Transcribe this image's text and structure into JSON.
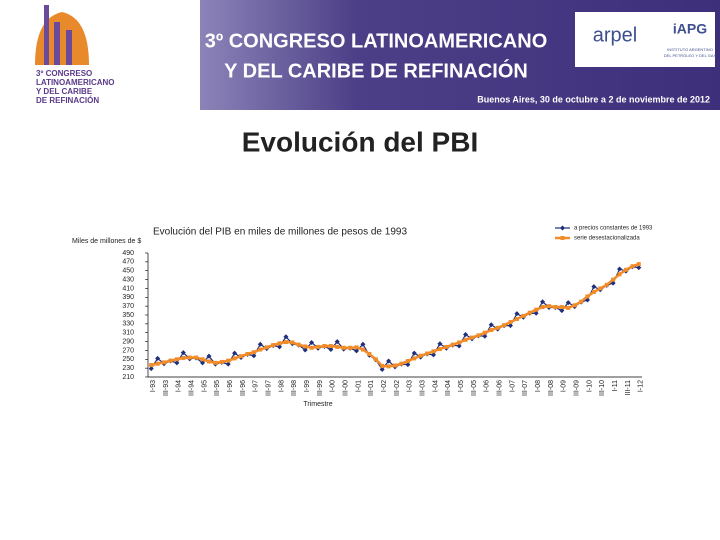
{
  "header": {
    "logo_lines": [
      "3º CONGRESO",
      "LATINOAMERICANO",
      "Y DEL CARIBE",
      "DE REFINACIÓN"
    ],
    "banner_line_1": "3º CONGRESO LATINOAMERICANO",
    "banner_line_2": "Y DEL CARIBE DE REFINACIÓN",
    "date": "Buenos Aires, 30 de octubre a 2 de noviembre de 2012",
    "arpel": "arpel",
    "iapg": "iAPG",
    "iapg_sub": [
      "INSTITUTO ARGENTINO",
      "DEL PETRÓLEO Y DEL GAS"
    ]
  },
  "slide_title": "Evolución del PBI",
  "chart_data": {
    "type": "line",
    "title": "Evolución del PIB en miles de millones de pesos de 1993",
    "ylabel": "Miles de millones de $",
    "xlabel": "Trimestre",
    "categories": [
      "I-93",
      null,
      "III-93",
      null,
      "I-94",
      null,
      "III-94",
      null,
      "I-95",
      null,
      "III-95",
      null,
      "I-96",
      null,
      "III-96",
      null,
      "I-97",
      null,
      "III-97",
      null,
      "I-98",
      null,
      "III-98",
      null,
      "I-99",
      null,
      "III-99",
      null,
      "I-00",
      null,
      "III-00",
      null,
      "I-01",
      null,
      "III-01",
      null,
      "I-02",
      null,
      "III-02",
      null,
      "I-03",
      null,
      "III-03",
      null,
      "I-04",
      null,
      "III-04",
      null,
      "I-05",
      null,
      "III-05",
      null,
      "I-06",
      null,
      "III-06",
      null,
      "I-07",
      null,
      "III-07",
      null,
      "I-08",
      null,
      "III-08",
      null,
      "I-09",
      null,
      "III-09",
      null,
      "I-10",
      null,
      "III-10",
      null,
      "I-11",
      null,
      "III-11",
      null,
      "I-12"
    ],
    "series": [
      {
        "name": "a precios constantes de 1993",
        "color": "#1f2f7a",
        "marker": "diamond",
        "values": [
          229,
          252,
          240,
          246,
          242,
          265,
          251,
          253,
          242,
          257,
          239,
          243,
          239,
          264,
          254,
          261,
          258,
          284,
          274,
          281,
          278,
          301,
          285,
          282,
          271,
          288,
          275,
          279,
          272,
          290,
          273,
          275,
          269,
          284,
          259,
          249,
          227,
          246,
          233,
          239,
          238,
          264,
          255,
          262,
          260,
          285,
          275,
          282,
          280,
          306,
          296,
          303,
          302,
          328,
          318,
          326,
          326,
          353,
          345,
          354,
          354,
          380,
          367,
          367,
          360,
          378,
          369,
          379,
          384,
          414,
          407,
          417,
          422,
          454,
          449,
          459,
          457
        ]
      },
      {
        "name": "serie desestacionalizada",
        "color": "#f28c28",
        "marker": "square",
        "values": [
          237,
          240,
          243,
          247,
          250,
          253,
          254,
          254,
          250,
          245,
          242,
          244,
          247,
          252,
          257,
          262,
          266,
          272,
          277,
          282,
          286,
          289,
          288,
          283,
          279,
          276,
          278,
          280,
          280,
          278,
          276,
          276,
          277,
          272,
          262,
          250,
          235,
          234,
          236,
          240,
          246,
          252,
          258,
          263,
          268,
          273,
          278,
          283,
          288,
          294,
          299,
          304,
          310,
          316,
          321,
          327,
          334,
          341,
          348,
          355,
          362,
          368,
          370,
          368,
          368,
          366,
          372,
          380,
          392,
          402,
          410,
          418,
          430,
          442,
          452,
          460,
          465
        ]
      }
    ],
    "ylim": [
      210,
      490
    ],
    "yticks": [
      210,
      230,
      250,
      270,
      290,
      310,
      330,
      350,
      370,
      390,
      410,
      430,
      450,
      470,
      490
    ],
    "grid": false,
    "legend": "top-right"
  }
}
